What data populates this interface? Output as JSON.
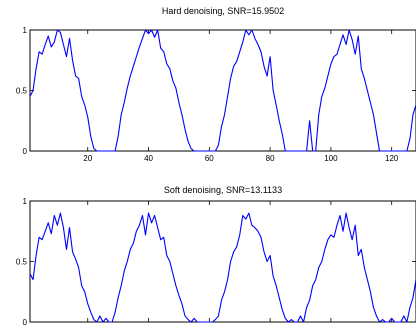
{
  "chart_data": [
    {
      "type": "line",
      "title": "Hard denoising, SNR=15.9502",
      "xlabel": "",
      "ylabel": "",
      "xlim": [
        1,
        128
      ],
      "ylim": [
        0,
        1
      ],
      "xticks": [
        20,
        40,
        60,
        80,
        100,
        120
      ],
      "xtick_labels": [
        "20",
        "40",
        "60",
        "80",
        "100",
        "120"
      ],
      "yticks": [
        0,
        0.5,
        1
      ],
      "ytick_labels": [
        "0",
        "0.5",
        "1"
      ],
      "grid": false,
      "color": "#0000ff",
      "series": [
        {
          "x": [
            1,
            2,
            3,
            4,
            5,
            6,
            7,
            8,
            9,
            10,
            11,
            12,
            13,
            14,
            15,
            16,
            17,
            18,
            19,
            20,
            21,
            22,
            23,
            24,
            25,
            26,
            27,
            28,
            29,
            30,
            31,
            32,
            33,
            34,
            35,
            36,
            37,
            38,
            39,
            40,
            41,
            42,
            43,
            44,
            45,
            46,
            47,
            48,
            49,
            50,
            51,
            52,
            53,
            54,
            55,
            56,
            57,
            58,
            59,
            60,
            61,
            62,
            63,
            64,
            65,
            66,
            67,
            68,
            69,
            70,
            71,
            72,
            73,
            74,
            75,
            76,
            77,
            78,
            79,
            80,
            81,
            82,
            83,
            84,
            85,
            86,
            87,
            88,
            89,
            90,
            91,
            92,
            93,
            94,
            95,
            96,
            97,
            98,
            99,
            100,
            101,
            102,
            103,
            104,
            105,
            106,
            107,
            108,
            109,
            110,
            111,
            112,
            113,
            114,
            115,
            116,
            117,
            118,
            119,
            120,
            121,
            122,
            123,
            124,
            125,
            126,
            127,
            128
          ],
          "y": [
            0.45,
            0.5,
            0.68,
            0.82,
            0.8,
            0.88,
            0.95,
            0.86,
            0.9,
            1.0,
            0.98,
            0.88,
            0.78,
            0.93,
            0.75,
            0.62,
            0.6,
            0.45,
            0.38,
            0.28,
            0.12,
            0.02,
            0.0,
            0.0,
            0.0,
            0.0,
            0.0,
            0.0,
            0.0,
            0.12,
            0.3,
            0.4,
            0.52,
            0.62,
            0.7,
            0.78,
            0.86,
            0.93,
            1.0,
            0.97,
            1.0,
            0.94,
            1.0,
            0.85,
            0.82,
            0.72,
            0.68,
            0.58,
            0.52,
            0.4,
            0.3,
            0.18,
            0.08,
            0.02,
            0.0,
            0.0,
            0.0,
            0.0,
            0.0,
            0.0,
            0.0,
            0.0,
            0.05,
            0.2,
            0.3,
            0.45,
            0.6,
            0.7,
            0.74,
            0.82,
            0.9,
            1.0,
            0.96,
            1.0,
            0.93,
            0.88,
            0.82,
            0.7,
            0.62,
            0.78,
            0.5,
            0.38,
            0.25,
            0.14,
            0.0,
            0.0,
            0.0,
            0.0,
            0.0,
            0.0,
            0.0,
            0.0,
            0.25,
            0.0,
            0.0,
            0.3,
            0.45,
            0.52,
            0.62,
            0.72,
            0.78,
            0.8,
            0.88,
            0.96,
            0.88,
            1.0,
            0.92,
            0.8,
            0.95,
            0.68,
            0.6,
            0.5,
            0.4,
            0.3,
            0.15,
            0.0,
            0.0,
            0.0,
            0.0,
            0.0,
            0.0,
            0.0,
            0.0,
            0.0,
            0.0,
            0.1,
            0.3,
            0.38
          ]
        }
      ]
    },
    {
      "type": "line",
      "title": "Soft denoising, SNR=13.1133",
      "xlabel": "",
      "ylabel": "",
      "xlim": [
        1,
        128
      ],
      "ylim": [
        0,
        1
      ],
      "xticks": [
        20,
        40,
        60,
        80,
        100,
        120
      ],
      "xtick_labels": [],
      "yticks": [
        0,
        0.5,
        1
      ],
      "ytick_labels": [
        "0",
        "0.5",
        "1"
      ],
      "grid": false,
      "color": "#0000ff",
      "series": [
        {
          "x": [
            1,
            2,
            3,
            4,
            5,
            6,
            7,
            8,
            9,
            10,
            11,
            12,
            13,
            14,
            15,
            16,
            17,
            18,
            19,
            20,
            21,
            22,
            23,
            24,
            25,
            26,
            27,
            28,
            29,
            30,
            31,
            32,
            33,
            34,
            35,
            36,
            37,
            38,
            39,
            40,
            41,
            42,
            43,
            44,
            45,
            46,
            47,
            48,
            49,
            50,
            51,
            52,
            53,
            54,
            55,
            56,
            57,
            58,
            59,
            60,
            61,
            62,
            63,
            64,
            65,
            66,
            67,
            68,
            69,
            70,
            71,
            72,
            73,
            74,
            75,
            76,
            77,
            78,
            79,
            80,
            81,
            82,
            83,
            84,
            85,
            86,
            87,
            88,
            89,
            90,
            91,
            92,
            93,
            94,
            95,
            96,
            97,
            98,
            99,
            100,
            101,
            102,
            103,
            104,
            105,
            106,
            107,
            108,
            109,
            110,
            111,
            112,
            113,
            114,
            115,
            116,
            117,
            118,
            119,
            120,
            121,
            122,
            123,
            124,
            125,
            126,
            127,
            128
          ],
          "y": [
            0.4,
            0.35,
            0.55,
            0.7,
            0.68,
            0.75,
            0.82,
            0.73,
            0.88,
            0.8,
            0.9,
            0.78,
            0.6,
            0.78,
            0.58,
            0.52,
            0.45,
            0.3,
            0.25,
            0.15,
            0.08,
            0.02,
            0.0,
            0.05,
            0.0,
            0.03,
            0.0,
            0.0,
            0.08,
            0.2,
            0.3,
            0.42,
            0.5,
            0.6,
            0.65,
            0.75,
            0.8,
            0.88,
            0.72,
            0.9,
            0.82,
            0.88,
            0.78,
            0.68,
            0.7,
            0.55,
            0.5,
            0.4,
            0.3,
            0.22,
            0.15,
            0.05,
            0.02,
            0.0,
            0.03,
            0.0,
            0.0,
            0.0,
            0.0,
            0.0,
            0.0,
            0.02,
            0.05,
            0.18,
            0.25,
            0.35,
            0.5,
            0.58,
            0.62,
            0.72,
            0.88,
            0.85,
            0.9,
            0.8,
            0.78,
            0.75,
            0.7,
            0.58,
            0.5,
            0.55,
            0.38,
            0.3,
            0.2,
            0.1,
            0.03,
            0.0,
            0.02,
            0.0,
            0.0,
            0.05,
            0.0,
            0.12,
            0.18,
            0.3,
            0.35,
            0.45,
            0.5,
            0.6,
            0.68,
            0.72,
            0.7,
            0.8,
            0.88,
            0.75,
            0.9,
            0.78,
            0.68,
            0.8,
            0.55,
            0.6,
            0.45,
            0.35,
            0.25,
            0.12,
            0.05,
            0.0,
            0.02,
            0.0,
            0.0,
            0.03,
            0.0,
            0.0,
            0.0,
            0.05,
            0.0,
            0.12,
            0.2,
            0.35
          ]
        }
      ]
    }
  ]
}
